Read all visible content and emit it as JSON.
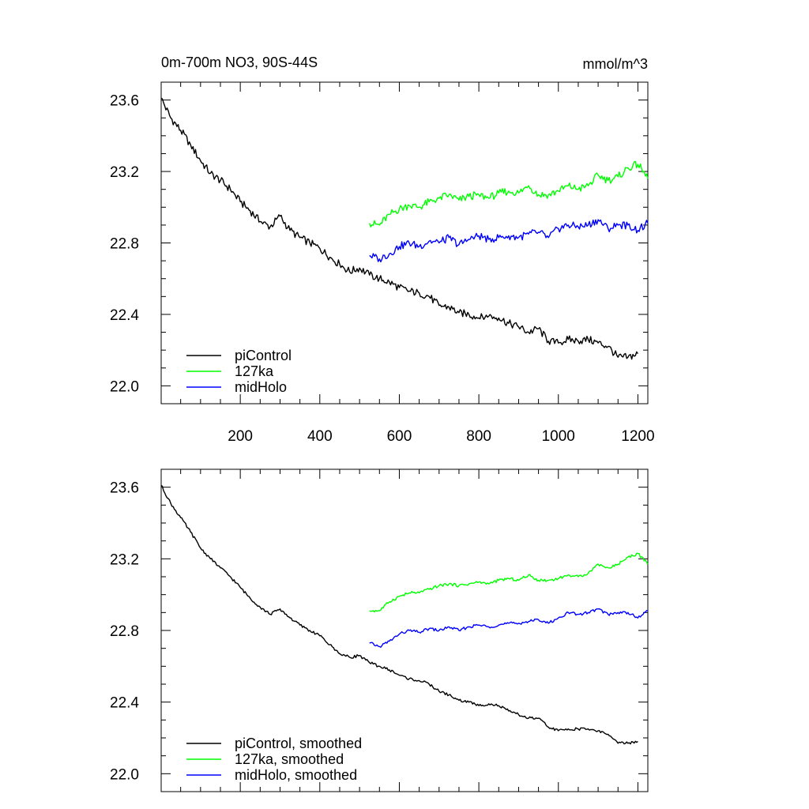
{
  "chart_data": [
    {
      "type": "line",
      "title": "0m-700m NO3, 90S-44S",
      "units": "mmol/m^3",
      "xlim": [
        1,
        1225
      ],
      "ylim": [
        21.9,
        23.7
      ],
      "x_ticks": [
        200,
        400,
        600,
        800,
        1000,
        1200
      ],
      "y_ticks": [
        22.0,
        22.4,
        22.8,
        23.2,
        23.6
      ],
      "y_tick_labels": [
        "22.0",
        "22.4",
        "22.8",
        "23.2",
        "23.6"
      ],
      "x_tick_labels": [
        "200",
        "400",
        "600",
        "800",
        "1000",
        "1200"
      ],
      "legend_position": "bottom-left",
      "grid": false,
      "series": [
        {
          "name": "piControl",
          "color": "#000000",
          "x": [
            1,
            25,
            50,
            75,
            100,
            125,
            150,
            175,
            200,
            225,
            250,
            275,
            300,
            325,
            350,
            375,
            400,
            425,
            450,
            475,
            500,
            525,
            550,
            575,
            600,
            625,
            650,
            675,
            700,
            725,
            750,
            775,
            800,
            825,
            850,
            875,
            900,
            925,
            950,
            975,
            1000,
            1025,
            1050,
            1075,
            1100,
            1125,
            1150,
            1175,
            1200
          ],
          "values": [
            23.61,
            23.5,
            23.43,
            23.35,
            23.26,
            23.19,
            23.15,
            23.1,
            23.03,
            22.98,
            22.92,
            22.89,
            22.95,
            22.87,
            22.83,
            22.8,
            22.77,
            22.72,
            22.68,
            22.64,
            22.66,
            22.62,
            22.6,
            22.58,
            22.55,
            22.53,
            22.52,
            22.5,
            22.45,
            22.44,
            22.41,
            22.4,
            22.38,
            22.39,
            22.38,
            22.35,
            22.33,
            22.3,
            22.32,
            22.25,
            22.24,
            22.26,
            22.25,
            22.26,
            22.24,
            22.22,
            22.16,
            22.16,
            22.18
          ]
        },
        {
          "name": "127ka",
          "color": "#00ff00",
          "x": [
            525,
            550,
            575,
            600,
            625,
            650,
            675,
            700,
            725,
            750,
            775,
            800,
            825,
            850,
            875,
            900,
            925,
            950,
            975,
            1000,
            1025,
            1050,
            1075,
            1100,
            1125,
            1150,
            1175,
            1200,
            1225
          ],
          "values": [
            22.91,
            22.9,
            22.96,
            22.99,
            23.01,
            23.0,
            23.03,
            23.05,
            23.07,
            23.04,
            23.06,
            23.07,
            23.05,
            23.08,
            23.09,
            23.08,
            23.12,
            23.07,
            23.07,
            23.09,
            23.12,
            23.1,
            23.12,
            23.18,
            23.15,
            23.17,
            23.22,
            23.24,
            23.16
          ]
        },
        {
          "name": "midHolo",
          "color": "#0000ff",
          "x": [
            525,
            550,
            575,
            600,
            625,
            650,
            675,
            700,
            725,
            750,
            775,
            800,
            825,
            850,
            875,
            900,
            925,
            950,
            975,
            1000,
            1025,
            1050,
            1075,
            1100,
            1125,
            1150,
            1175,
            1200,
            1225
          ],
          "values": [
            22.73,
            22.71,
            22.74,
            22.78,
            22.8,
            22.78,
            22.81,
            22.8,
            22.83,
            22.79,
            22.82,
            22.84,
            22.82,
            22.83,
            22.84,
            22.83,
            22.85,
            22.86,
            22.83,
            22.88,
            22.9,
            22.89,
            22.9,
            22.93,
            22.88,
            22.9,
            22.9,
            22.87,
            22.91
          ]
        }
      ]
    },
    {
      "type": "line",
      "title": "",
      "xlim": [
        1,
        1225
      ],
      "ylim": [
        21.9,
        23.7
      ],
      "x_ticks": [
        200,
        400,
        600,
        800,
        1000,
        1200
      ],
      "y_ticks": [
        22.0,
        22.4,
        22.8,
        23.2,
        23.6
      ],
      "y_tick_labels": [
        "22.0",
        "22.4",
        "22.8",
        "23.2",
        "23.6"
      ],
      "legend_position": "bottom-left",
      "grid": false,
      "series": [
        {
          "name": "piControl, smoothed",
          "color": "#000000",
          "x": [
            1,
            25,
            50,
            75,
            100,
            125,
            150,
            175,
            200,
            225,
            250,
            275,
            300,
            325,
            350,
            375,
            400,
            425,
            450,
            475,
            500,
            525,
            550,
            575,
            600,
            625,
            650,
            675,
            700,
            725,
            750,
            775,
            800,
            825,
            850,
            875,
            900,
            925,
            950,
            975,
            1000,
            1025,
            1050,
            1075,
            1100,
            1125,
            1150,
            1175,
            1200
          ],
          "values": [
            23.61,
            23.51,
            23.43,
            23.35,
            23.26,
            23.2,
            23.15,
            23.1,
            23.04,
            22.98,
            22.93,
            22.89,
            22.92,
            22.87,
            22.83,
            22.8,
            22.77,
            22.72,
            22.67,
            22.65,
            22.66,
            22.62,
            22.6,
            22.58,
            22.55,
            22.53,
            22.52,
            22.5,
            22.46,
            22.44,
            22.41,
            22.4,
            22.38,
            22.39,
            22.38,
            22.35,
            22.33,
            22.31,
            22.31,
            22.26,
            22.24,
            22.25,
            22.25,
            22.25,
            22.24,
            22.22,
            22.17,
            22.17,
            22.18
          ]
        },
        {
          "name": "127ka, smoothed",
          "color": "#00ff00",
          "x": [
            525,
            550,
            575,
            600,
            625,
            650,
            675,
            700,
            725,
            750,
            775,
            800,
            825,
            850,
            875,
            900,
            925,
            950,
            975,
            1000,
            1025,
            1050,
            1075,
            1100,
            1125,
            1150,
            1175,
            1200,
            1225
          ],
          "values": [
            22.91,
            22.91,
            22.96,
            22.99,
            23.01,
            23.01,
            23.03,
            23.05,
            23.06,
            23.05,
            23.06,
            23.07,
            23.06,
            23.08,
            23.09,
            23.08,
            23.11,
            23.08,
            23.08,
            23.09,
            23.11,
            23.1,
            23.12,
            23.17,
            23.15,
            23.17,
            23.21,
            23.23,
            23.17
          ]
        },
        {
          "name": "midHolo, smoothed",
          "color": "#0000ff",
          "x": [
            525,
            550,
            575,
            600,
            625,
            650,
            675,
            700,
            725,
            750,
            775,
            800,
            825,
            850,
            875,
            900,
            925,
            950,
            975,
            1000,
            1025,
            1050,
            1075,
            1100,
            1125,
            1150,
            1175,
            1200,
            1225
          ],
          "values": [
            22.73,
            22.71,
            22.74,
            22.78,
            22.8,
            22.79,
            22.81,
            22.8,
            22.82,
            22.8,
            22.82,
            22.83,
            22.82,
            22.83,
            22.84,
            22.84,
            22.85,
            22.86,
            22.84,
            22.87,
            22.9,
            22.89,
            22.9,
            22.92,
            22.89,
            22.9,
            22.9,
            22.87,
            22.91
          ]
        }
      ]
    }
  ]
}
